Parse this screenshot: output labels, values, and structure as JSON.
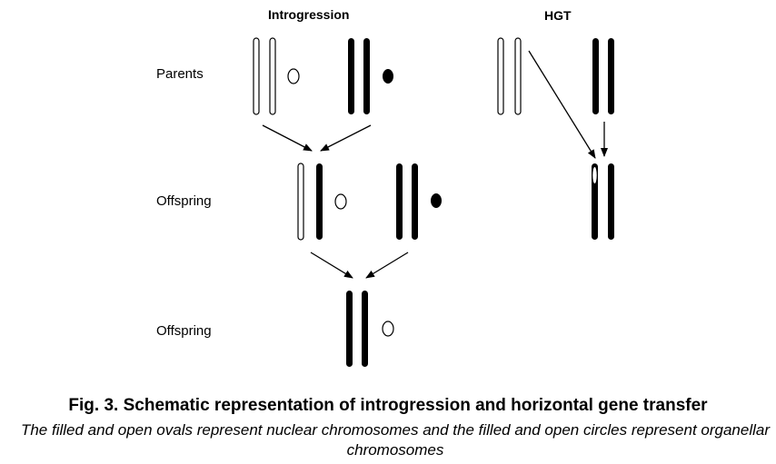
{
  "headers": {
    "introgression": "Introgression",
    "hgt": "HGT"
  },
  "row_labels": {
    "parents": "Parents",
    "offspring_1": "Offspring",
    "offspring_2": "Offspring"
  },
  "caption": {
    "title": "Fig. 3. Schematic representation of introgression and horizontal gene transfer",
    "description": "The filled and open ovals represent nuclear chromosomes and the filled and open circles represent organellar chromosomes"
  }
}
